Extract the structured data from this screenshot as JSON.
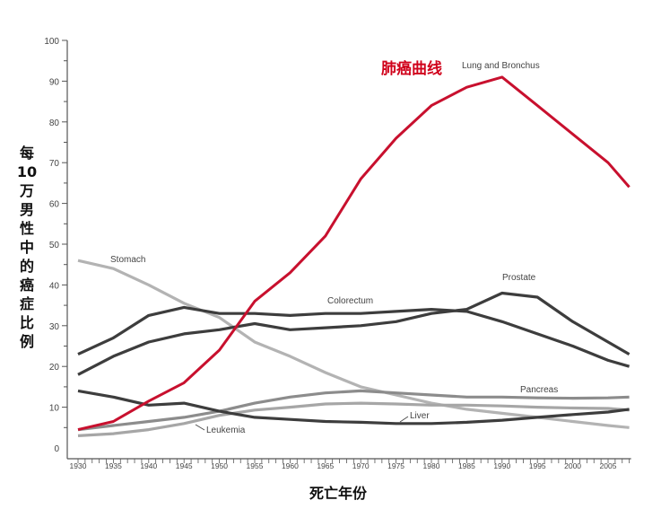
{
  "chart_data": {
    "type": "line",
    "title": "",
    "xlabel": "死亡年份",
    "ylabel": "每 10 万男性中的癌症比例",
    "annotation": "肺癌曲线",
    "xlim": [
      1930,
      2008
    ],
    "ylim": [
      0,
      100
    ],
    "xticks": [
      1930,
      1935,
      1940,
      1945,
      1950,
      1955,
      1960,
      1965,
      1970,
      1975,
      1980,
      1985,
      1990,
      1995,
      2000,
      2005
    ],
    "yticks": [
      0,
      10,
      20,
      30,
      40,
      50,
      60,
      70,
      80,
      90,
      100
    ],
    "grid": false,
    "x": [
      1930,
      1935,
      1940,
      1945,
      1950,
      1955,
      1960,
      1965,
      1970,
      1975,
      1980,
      1985,
      1990,
      1995,
      2000,
      2005,
      2008
    ],
    "series": [
      {
        "name": "Lung and Bronchus",
        "color": "#c8102e",
        "values": [
          4.5,
          6.5,
          11.5,
          16,
          24,
          36,
          43,
          52,
          66,
          76,
          84,
          88.5,
          91,
          84,
          77,
          70,
          64
        ]
      },
      {
        "name": "Colorectum",
        "color": "#3d3d3d",
        "values": [
          23,
          27,
          32.5,
          34.5,
          33,
          33,
          32.5,
          33,
          33,
          33.5,
          34,
          33.5,
          31,
          28,
          25,
          21.5,
          20
        ]
      },
      {
        "name": "Prostate",
        "color": "#3d3d3d",
        "values": [
          18,
          22.5,
          26,
          28,
          29,
          30.5,
          29,
          29.5,
          30,
          31,
          33,
          34,
          38,
          37,
          31,
          26,
          23
        ]
      },
      {
        "name": "Stomach",
        "color": "#b3b3b3",
        "values": [
          46,
          44,
          40,
          35.5,
          32,
          26,
          22.5,
          18.5,
          15,
          13,
          11,
          9.5,
          8.5,
          7.5,
          6.5,
          5.5,
          5
        ]
      },
      {
        "name": "Pancreas",
        "color": "#8c8c8c",
        "values": [
          4.5,
          5.5,
          6.5,
          7.5,
          9,
          11,
          12.5,
          13.5,
          14,
          13.5,
          13,
          12.5,
          12.5,
          12.3,
          12.2,
          12.3,
          12.5
        ]
      },
      {
        "name": "Leukemia",
        "color": "#a6a6a6",
        "values": [
          3,
          3.5,
          4.5,
          6,
          8,
          9.3,
          10,
          10.8,
          11,
          10.8,
          10.5,
          10.5,
          10.3,
          10,
          9.8,
          9.7,
          9.3
        ]
      },
      {
        "name": "Liver",
        "color": "#3d3d3d",
        "values": [
          14,
          12.5,
          10.5,
          11,
          9,
          7.5,
          7,
          6.5,
          6.3,
          6,
          6,
          6.3,
          6.8,
          7.5,
          8.2,
          8.8,
          9.5
        ]
      }
    ]
  }
}
